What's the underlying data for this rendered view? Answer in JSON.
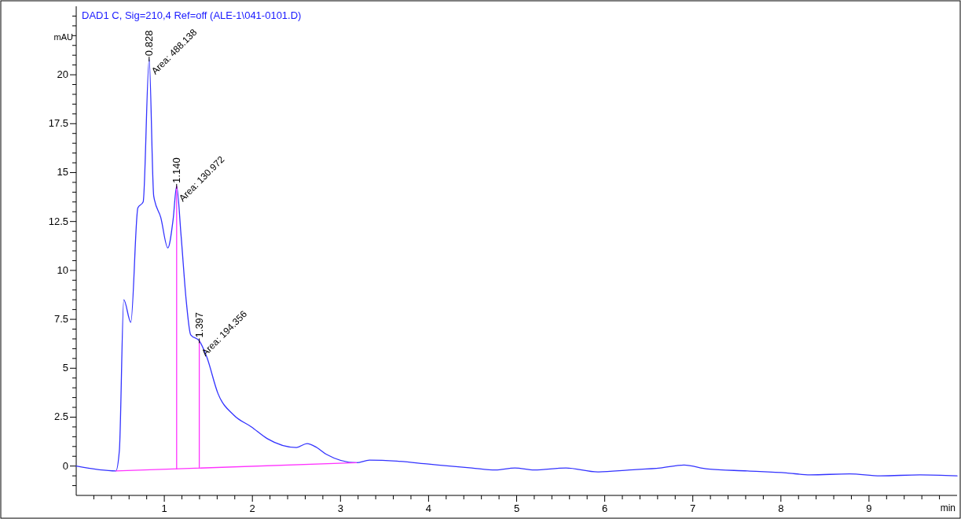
{
  "chart_data": {
    "type": "line",
    "title": "DAD1 C, Sig=210,4 Ref=off (ALE-1\\041-0101.D)",
    "xlabel": "min",
    "ylabel": "mAU",
    "xlim": [
      0,
      10
    ],
    "ylim": [
      -1.5,
      23.5
    ],
    "xticks": [
      {
        "value": 0.2,
        "label": null
      },
      {
        "value": 0.4,
        "label": null
      },
      {
        "value": 0.6,
        "label": null
      },
      {
        "value": 0.8,
        "label": null
      },
      1,
      {
        "value": 1.2,
        "label": null
      },
      {
        "value": 1.4,
        "label": null
      },
      {
        "value": 1.6,
        "label": null
      },
      {
        "value": 1.8,
        "label": null
      },
      2,
      {
        "value": 2.2,
        "label": null
      },
      {
        "value": 2.4,
        "label": null
      },
      {
        "value": 2.6,
        "label": null
      },
      {
        "value": 2.8,
        "label": null
      },
      3,
      {
        "value": 3.2,
        "label": null
      },
      {
        "value": 3.4,
        "label": null
      },
      {
        "value": 3.6,
        "label": null
      },
      {
        "value": 3.8,
        "label": null
      },
      4,
      {
        "value": 4.2,
        "label": null
      },
      {
        "value": 4.4,
        "label": null
      },
      {
        "value": 4.6,
        "label": null
      },
      {
        "value": 4.8,
        "label": null
      },
      5,
      {
        "value": 5.2,
        "label": null
      },
      {
        "value": 5.4,
        "label": null
      },
      {
        "value": 5.6,
        "label": null
      },
      {
        "value": 5.8,
        "label": null
      },
      6,
      {
        "value": 6.2,
        "label": null
      },
      {
        "value": 6.4,
        "label": null
      },
      {
        "value": 6.6,
        "label": null
      },
      {
        "value": 6.8,
        "label": null
      },
      7,
      {
        "value": 7.2,
        "label": null
      },
      {
        "value": 7.4,
        "label": null
      },
      {
        "value": 7.6,
        "label": null
      },
      {
        "value": 7.8,
        "label": null
      },
      8,
      {
        "value": 8.2,
        "label": null
      },
      {
        "value": 8.4,
        "label": null
      },
      {
        "value": 8.6,
        "label": null
      },
      {
        "value": 8.8,
        "label": null
      },
      9,
      {
        "value": 9.2,
        "label": null
      },
      {
        "value": 9.4,
        "label": null
      },
      {
        "value": 9.6,
        "label": null
      },
      {
        "value": 9.8,
        "label": null
      }
    ],
    "yticks": [
      {
        "value": -1,
        "label": null
      },
      {
        "value": -0.5,
        "label": null
      },
      0,
      {
        "value": 0.5,
        "label": null
      },
      {
        "value": 1,
        "label": null
      },
      {
        "value": 1.5,
        "label": null
      },
      {
        "value": 2,
        "label": null
      },
      2.5,
      {
        "value": 3,
        "label": null
      },
      {
        "value": 3.5,
        "label": null
      },
      {
        "value": 4,
        "label": null
      },
      {
        "value": 4.5,
        "label": null
      },
      5,
      {
        "value": 5.5,
        "label": null
      },
      {
        "value": 6,
        "label": null
      },
      {
        "value": 6.5,
        "label": null
      },
      {
        "value": 7,
        "label": null
      },
      7.5,
      {
        "value": 8,
        "label": null
      },
      {
        "value": 8.5,
        "label": null
      },
      {
        "value": 9,
        "label": null
      },
      {
        "value": 9.5,
        "label": null
      },
      10,
      {
        "value": 10.5,
        "label": null
      },
      {
        "value": 11,
        "label": null
      },
      {
        "value": 11.5,
        "label": null
      },
      {
        "value": 12,
        "label": null
      },
      12.5,
      {
        "value": 13,
        "label": null
      },
      {
        "value": 13.5,
        "label": null
      },
      {
        "value": 14,
        "label": null
      },
      {
        "value": 14.5,
        "label": null
      },
      15,
      {
        "value": 15.5,
        "label": null
      },
      {
        "value": 16,
        "label": null
      },
      {
        "value": 16.5,
        "label": null
      },
      {
        "value": 17,
        "label": null
      },
      17.5,
      {
        "value": 18,
        "label": null
      },
      {
        "value": 18.5,
        "label": null
      },
      {
        "value": 19,
        "label": null
      },
      {
        "value": 19.5,
        "label": null
      },
      20,
      {
        "value": 20.5,
        "label": null
      },
      {
        "value": 21,
        "label": null
      },
      {
        "value": 21.5,
        "label": null
      },
      {
        "value": 22,
        "label": null
      },
      {
        "value": 22.5,
        "label": null
      },
      {
        "value": 23,
        "label": null
      }
    ],
    "line_style": "solid",
    "marker": "none",
    "series": [
      {
        "color": "#3333ff",
        "x": [
          0,
          0.45,
          0.49,
          0.54,
          0.62,
          0.7,
          0.76,
          0.828,
          0.88,
          0.96,
          1.04,
          1.1,
          1.14,
          1.19,
          1.25,
          1.3,
          1.397,
          1.48,
          1.61,
          1.79,
          1.99,
          2.17,
          2.5,
          2.62,
          2.73,
          2.84,
          3.18,
          3.33,
          3.64,
          4.0,
          4.49,
          4.76,
          4.98,
          5.2,
          5.56,
          5.92,
          6.28,
          6.63,
          6.9,
          7.17,
          7.62,
          8.06,
          8.33,
          8.78,
          9.13,
          9.58,
          10
        ],
        "values": [
          0,
          -0.25,
          0.8,
          8.5,
          7.35,
          13.2,
          13.5,
          20.8,
          13.8,
          12.7,
          11.15,
          12.6,
          14.3,
          11.8,
          8.4,
          6.7,
          6.4,
          5.6,
          3.7,
          2.6,
          2.0,
          1.4,
          0.95,
          1.15,
          0.95,
          0.6,
          0.17,
          0.3,
          0.25,
          0.1,
          -0.1,
          -0.2,
          -0.1,
          -0.2,
          -0.1,
          -0.3,
          -0.2,
          -0.1,
          0.05,
          -0.15,
          -0.25,
          -0.35,
          -0.45,
          -0.4,
          -0.5,
          -0.45,
          -0.5
        ]
      },
      {
        "color": "#ff33ff",
        "x": [
          0.45,
          3.18
        ],
        "values": [
          -0.25,
          0.17
        ]
      },
      {
        "color": "#ff33ff",
        "x": [
          1.14,
          1.14
        ],
        "values": [
          -0.14,
          14.3
        ]
      },
      {
        "color": "#ff33ff",
        "x": [
          1.397,
          1.397
        ],
        "values": [
          -0.1,
          6.4
        ]
      }
    ],
    "annotations": [
      {
        "text": "0.828",
        "x": 0.828,
        "y": 20.8
      },
      {
        "text": "Area: 488.138",
        "x": 0.828,
        "y": 20.8
      },
      {
        "text": "1.140",
        "x": 1.14,
        "y": 14.3
      },
      {
        "text": "Area: 130.972",
        "x": 1.14,
        "y": 14.3
      },
      {
        "text": "1.397",
        "x": 1.397,
        "y": 6.4
      },
      {
        "text": "Area: 194.356",
        "x": 1.397,
        "y": 6.4
      }
    ]
  }
}
